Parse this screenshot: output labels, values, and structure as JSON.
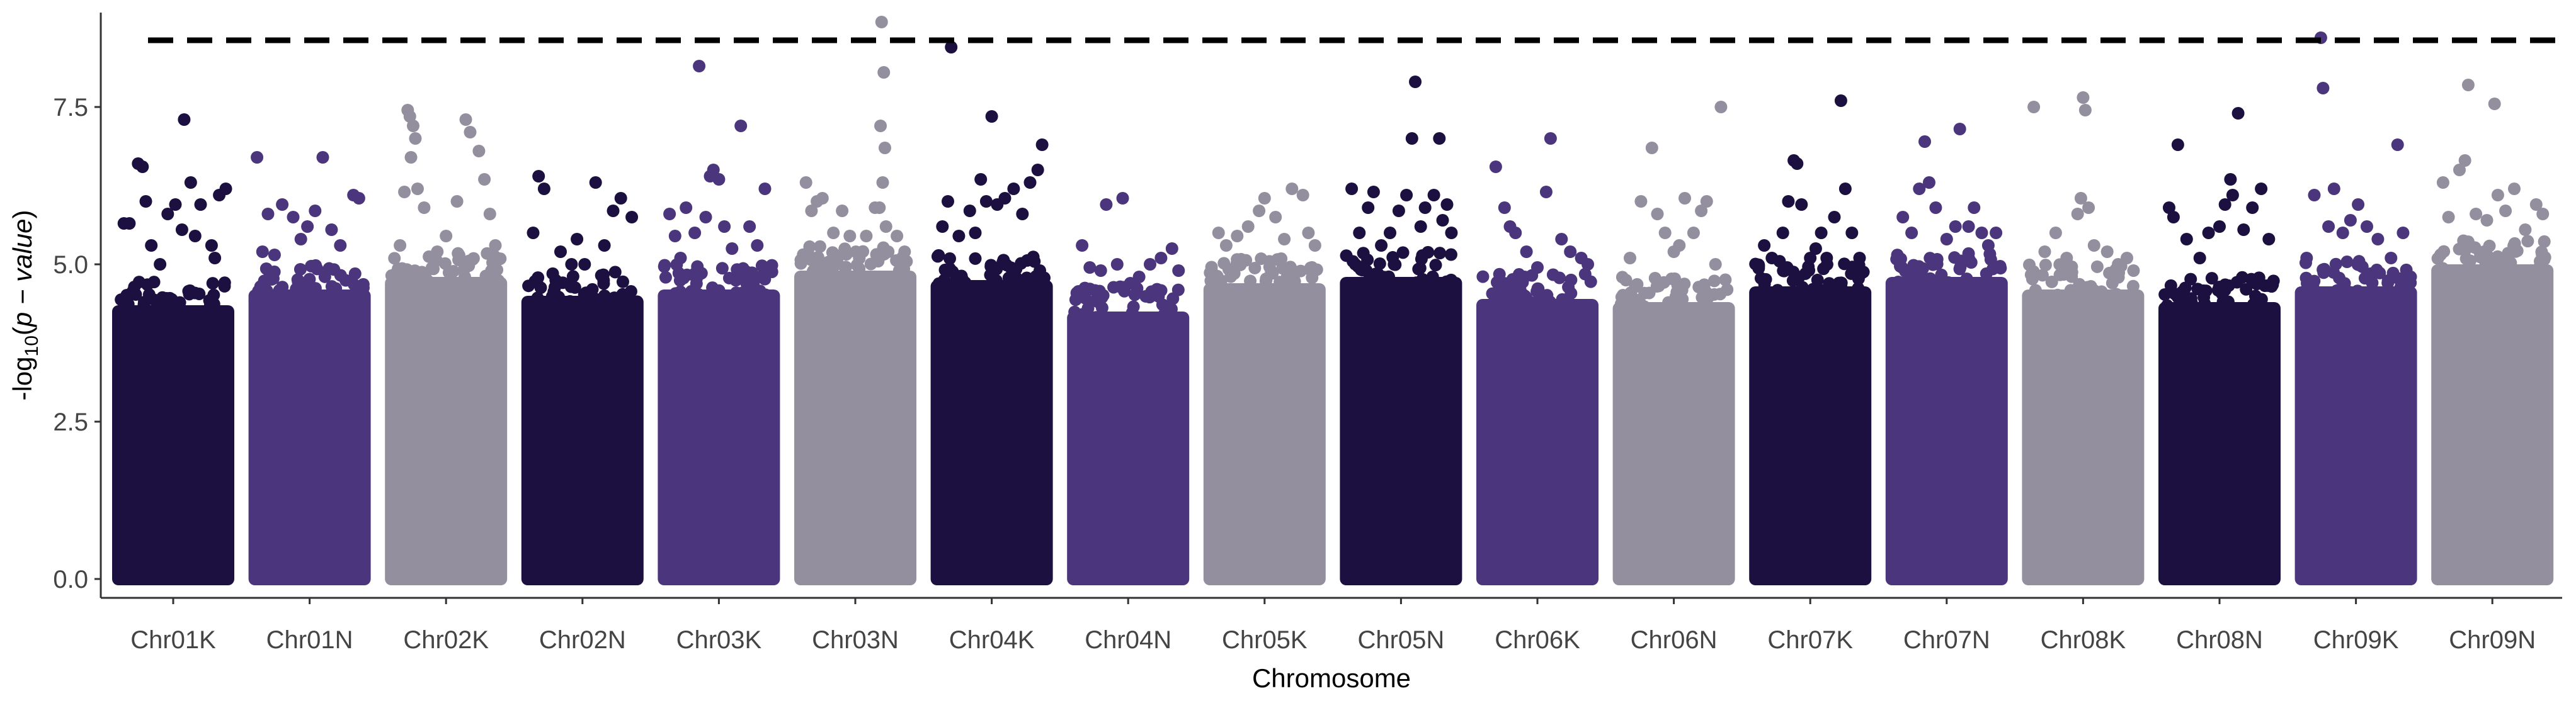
{
  "chart_data": {
    "type": "scatter",
    "subtype": "manhattan",
    "xlabel": "Chromosome",
    "ylabel": "-log10(p - value)",
    "ylabel_parts": {
      "prefix": "-log",
      "sub": "10",
      "open": "(",
      "italic": "p − value",
      "close": ")"
    },
    "ylim": [
      -0.3,
      9.0
    ],
    "yticks": [
      0.0,
      2.5,
      5.0,
      7.5
    ],
    "ytick_labels": [
      "0.0",
      "2.5",
      "5.0",
      "7.5"
    ],
    "threshold": 8.56,
    "threshold_style": "dashed",
    "grid": false,
    "legend": "none",
    "palette": [
      "#1b1040",
      "#4b357c",
      "#938f9f"
    ],
    "chromosomes": [
      {
        "name": "Chr01K",
        "color": "#1b1040",
        "bulk": 4.35,
        "peaks": [
          [
            0.18,
            6.6
          ],
          [
            0.22,
            6.55
          ],
          [
            0.6,
            7.3
          ],
          [
            0.45,
            5.8
          ],
          [
            0.7,
            5.45
          ],
          [
            0.3,
            5.3
          ],
          [
            0.85,
            5.3
          ],
          [
            0.92,
            6.1
          ],
          [
            0.98,
            6.2
          ],
          [
            0.52,
            5.95
          ],
          [
            0.38,
            5.0
          ],
          [
            0.1,
            5.65
          ],
          [
            0.66,
            6.3
          ],
          [
            0.75,
            5.95
          ],
          [
            0.88,
            5.1
          ],
          [
            0.05,
            5.65
          ],
          [
            0.25,
            6.0
          ],
          [
            0.58,
            5.55
          ]
        ]
      },
      {
        "name": "Chr01N",
        "color": "#4b357c",
        "bulk": 4.6,
        "peaks": [
          [
            0.02,
            6.7
          ],
          [
            0.07,
            5.2
          ],
          [
            0.12,
            5.8
          ],
          [
            0.25,
            5.95
          ],
          [
            0.35,
            5.75
          ],
          [
            0.42,
            5.4
          ],
          [
            0.55,
            5.85
          ],
          [
            0.62,
            6.7
          ],
          [
            0.7,
            5.55
          ],
          [
            0.78,
            5.3
          ],
          [
            0.9,
            6.1
          ],
          [
            0.95,
            6.05
          ],
          [
            0.48,
            5.6
          ],
          [
            0.18,
            5.15
          ]
        ]
      },
      {
        "name": "Chr02K",
        "color": "#938f9f",
        "bulk": 4.8,
        "peaks": [
          [
            0.15,
            7.45
          ],
          [
            0.17,
            7.35
          ],
          [
            0.2,
            7.2
          ],
          [
            0.22,
            7.0
          ],
          [
            0.18,
            6.7
          ],
          [
            0.24,
            6.2
          ],
          [
            0.12,
            6.15
          ],
          [
            0.3,
            5.9
          ],
          [
            0.42,
            5.2
          ],
          [
            0.6,
            6.0
          ],
          [
            0.68,
            7.3
          ],
          [
            0.72,
            7.1
          ],
          [
            0.8,
            6.8
          ],
          [
            0.85,
            6.35
          ],
          [
            0.9,
            5.8
          ],
          [
            0.95,
            5.3
          ],
          [
            0.5,
            5.45
          ],
          [
            0.08,
            5.3
          ]
        ]
      },
      {
        "name": "Chr02N",
        "color": "#1b1040",
        "bulk": 4.5,
        "peaks": [
          [
            0.1,
            6.4
          ],
          [
            0.15,
            6.2
          ],
          [
            0.3,
            5.2
          ],
          [
            0.45,
            5.4
          ],
          [
            0.62,
            6.3
          ],
          [
            0.7,
            5.3
          ],
          [
            0.85,
            6.05
          ],
          [
            0.95,
            5.75
          ],
          [
            0.05,
            5.5
          ],
          [
            0.52,
            5.0
          ],
          [
            0.78,
            5.85
          ],
          [
            0.4,
            5.0
          ]
        ]
      },
      {
        "name": "Chr03K",
        "color": "#4b357c",
        "bulk": 4.6,
        "peaks": [
          [
            0.05,
            5.8
          ],
          [
            0.1,
            5.45
          ],
          [
            0.2,
            5.9
          ],
          [
            0.32,
            8.15
          ],
          [
            0.38,
            5.75
          ],
          [
            0.42,
            6.4
          ],
          [
            0.45,
            6.5
          ],
          [
            0.5,
            6.35
          ],
          [
            0.55,
            5.6
          ],
          [
            0.62,
            5.25
          ],
          [
            0.7,
            7.2
          ],
          [
            0.78,
            5.6
          ],
          [
            0.85,
            5.3
          ],
          [
            0.92,
            6.2
          ],
          [
            0.28,
            5.5
          ],
          [
            0.15,
            5.1
          ]
        ]
      },
      {
        "name": "Chr03N",
        "color": "#938f9f",
        "bulk": 4.9,
        "peaks": [
          [
            0.05,
            6.3
          ],
          [
            0.1,
            5.85
          ],
          [
            0.15,
            6.0
          ],
          [
            0.2,
            6.05
          ],
          [
            0.3,
            5.5
          ],
          [
            0.38,
            5.85
          ],
          [
            0.45,
            5.45
          ],
          [
            0.55,
            4.7
          ],
          [
            0.6,
            5.45
          ],
          [
            0.68,
            5.9
          ],
          [
            0.74,
            8.85
          ],
          [
            0.76,
            8.05
          ],
          [
            0.73,
            7.2
          ],
          [
            0.77,
            6.85
          ],
          [
            0.75,
            6.3
          ],
          [
            0.72,
            5.9
          ],
          [
            0.78,
            5.6
          ],
          [
            0.8,
            5.2
          ],
          [
            0.88,
            5.45
          ],
          [
            0.95,
            5.2
          ]
        ]
      },
      {
        "name": "Chr04K",
        "color": "#1b1040",
        "bulk": 4.75,
        "peaks": [
          [
            0.05,
            5.6
          ],
          [
            0.1,
            6.0
          ],
          [
            0.13,
            8.45
          ],
          [
            0.2,
            5.45
          ],
          [
            0.3,
            5.85
          ],
          [
            0.4,
            6.35
          ],
          [
            0.45,
            6.0
          ],
          [
            0.5,
            7.35
          ],
          [
            0.55,
            5.95
          ],
          [
            0.62,
            6.05
          ],
          [
            0.7,
            6.2
          ],
          [
            0.78,
            5.8
          ],
          [
            0.85,
            6.3
          ],
          [
            0.92,
            6.5
          ],
          [
            0.96,
            6.9
          ],
          [
            0.35,
            5.5
          ]
        ]
      },
      {
        "name": "Chr04N",
        "color": "#4b357c",
        "bulk": 4.25,
        "peaks": [
          [
            0.08,
            5.3
          ],
          [
            0.15,
            4.95
          ],
          [
            0.25,
            4.9
          ],
          [
            0.3,
            5.95
          ],
          [
            0.4,
            5.0
          ],
          [
            0.45,
            6.05
          ],
          [
            0.52,
            4.7
          ],
          [
            0.6,
            4.8
          ],
          [
            0.7,
            5.0
          ],
          [
            0.8,
            5.1
          ],
          [
            0.9,
            5.25
          ],
          [
            0.96,
            4.9
          ]
        ]
      },
      {
        "name": "Chr05K",
        "color": "#938f9f",
        "bulk": 4.7,
        "peaks": [
          [
            0.08,
            5.5
          ],
          [
            0.15,
            5.3
          ],
          [
            0.25,
            5.45
          ],
          [
            0.35,
            5.6
          ],
          [
            0.45,
            5.85
          ],
          [
            0.5,
            6.05
          ],
          [
            0.6,
            5.75
          ],
          [
            0.68,
            5.4
          ],
          [
            0.75,
            6.2
          ],
          [
            0.85,
            6.1
          ],
          [
            0.9,
            5.5
          ],
          [
            0.96,
            5.3
          ]
        ]
      },
      {
        "name": "Chr05N",
        "color": "#1b1040",
        "bulk": 4.8,
        "peaks": [
          [
            0.05,
            6.2
          ],
          [
            0.12,
            5.5
          ],
          [
            0.2,
            5.9
          ],
          [
            0.25,
            6.15
          ],
          [
            0.32,
            5.3
          ],
          [
            0.4,
            5.5
          ],
          [
            0.48,
            5.85
          ],
          [
            0.55,
            6.1
          ],
          [
            0.6,
            7.0
          ],
          [
            0.63,
            7.9
          ],
          [
            0.68,
            5.6
          ],
          [
            0.72,
            5.9
          ],
          [
            0.8,
            6.1
          ],
          [
            0.85,
            7.0
          ],
          [
            0.88,
            5.7
          ],
          [
            0.92,
            5.95
          ],
          [
            0.96,
            5.5
          ]
        ]
      },
      {
        "name": "Chr06K",
        "color": "#4b357c",
        "bulk": 4.45,
        "peaks": [
          [
            0.12,
            6.55
          ],
          [
            0.2,
            5.9
          ],
          [
            0.3,
            5.5
          ],
          [
            0.4,
            5.2
          ],
          [
            0.5,
            4.95
          ],
          [
            0.58,
            6.15
          ],
          [
            0.62,
            7.0
          ],
          [
            0.72,
            5.4
          ],
          [
            0.8,
            5.2
          ],
          [
            0.9,
            5.1
          ],
          [
            0.96,
            5.0
          ],
          [
            0.25,
            5.6
          ]
        ]
      },
      {
        "name": "Chr06N",
        "color": "#938f9f",
        "bulk": 4.4,
        "peaks": [
          [
            0.1,
            5.1
          ],
          [
            0.2,
            6.0
          ],
          [
            0.3,
            6.85
          ],
          [
            0.35,
            5.8
          ],
          [
            0.42,
            5.5
          ],
          [
            0.5,
            5.2
          ],
          [
            0.6,
            6.05
          ],
          [
            0.68,
            5.5
          ],
          [
            0.75,
            5.85
          ],
          [
            0.8,
            6.0
          ],
          [
            0.88,
            5.0
          ],
          [
            0.93,
            7.5
          ],
          [
            0.55,
            5.3
          ]
        ]
      },
      {
        "name": "Chr07K",
        "color": "#1b1040",
        "bulk": 4.65,
        "peaks": [
          [
            0.08,
            5.3
          ],
          [
            0.15,
            5.1
          ],
          [
            0.25,
            5.5
          ],
          [
            0.3,
            6.0
          ],
          [
            0.35,
            6.65
          ],
          [
            0.38,
            6.6
          ],
          [
            0.42,
            5.95
          ],
          [
            0.5,
            5.1
          ],
          [
            0.55,
            5.25
          ],
          [
            0.6,
            5.5
          ],
          [
            0.65,
            5.1
          ],
          [
            0.72,
            5.75
          ],
          [
            0.78,
            7.6
          ],
          [
            0.82,
            6.2
          ],
          [
            0.88,
            5.5
          ],
          [
            0.95,
            5.1
          ]
        ]
      },
      {
        "name": "Chr07N",
        "color": "#4b357c",
        "bulk": 4.8,
        "peaks": [
          [
            0.1,
            5.75
          ],
          [
            0.18,
            5.5
          ],
          [
            0.25,
            6.2
          ],
          [
            0.3,
            6.95
          ],
          [
            0.34,
            6.3
          ],
          [
            0.4,
            5.9
          ],
          [
            0.5,
            5.4
          ],
          [
            0.58,
            5.6
          ],
          [
            0.62,
            7.15
          ],
          [
            0.7,
            5.6
          ],
          [
            0.75,
            5.9
          ],
          [
            0.82,
            5.5
          ],
          [
            0.88,
            5.3
          ],
          [
            0.95,
            5.5
          ]
        ]
      },
      {
        "name": "Chr08K",
        "color": "#938f9f",
        "bulk": 4.6,
        "peaks": [
          [
            0.05,
            7.5
          ],
          [
            0.15,
            5.2
          ],
          [
            0.25,
            5.5
          ],
          [
            0.35,
            5.1
          ],
          [
            0.45,
            5.8
          ],
          [
            0.48,
            6.05
          ],
          [
            0.5,
            7.65
          ],
          [
            0.52,
            7.45
          ],
          [
            0.55,
            5.9
          ],
          [
            0.6,
            5.3
          ],
          [
            0.72,
            5.2
          ],
          [
            0.82,
            5.0
          ],
          [
            0.9,
            5.1
          ],
          [
            0.96,
            4.9
          ]
        ]
      },
      {
        "name": "Chr08N",
        "color": "#1b1040",
        "bulk": 4.4,
        "peaks": [
          [
            0.04,
            5.9
          ],
          [
            0.08,
            5.75
          ],
          [
            0.12,
            6.9
          ],
          [
            0.2,
            5.4
          ],
          [
            0.32,
            5.1
          ],
          [
            0.4,
            5.5
          ],
          [
            0.5,
            5.6
          ],
          [
            0.55,
            5.95
          ],
          [
            0.6,
            6.35
          ],
          [
            0.62,
            6.1
          ],
          [
            0.67,
            7.4
          ],
          [
            0.72,
            5.55
          ],
          [
            0.8,
            5.9
          ],
          [
            0.88,
            6.2
          ],
          [
            0.95,
            5.4
          ]
        ]
      },
      {
        "name": "Chr09K",
        "color": "#4b357c",
        "bulk": 4.65,
        "peaks": [
          [
            0.05,
            5.1
          ],
          [
            0.12,
            6.1
          ],
          [
            0.18,
            8.6
          ],
          [
            0.2,
            7.8
          ],
          [
            0.25,
            5.6
          ],
          [
            0.3,
            6.2
          ],
          [
            0.38,
            5.5
          ],
          [
            0.45,
            5.7
          ],
          [
            0.52,
            5.95
          ],
          [
            0.6,
            5.6
          ],
          [
            0.7,
            5.4
          ],
          [
            0.82,
            5.1
          ],
          [
            0.88,
            6.9
          ],
          [
            0.93,
            5.5
          ]
        ]
      },
      {
        "name": "Chr09N",
        "color": "#938f9f",
        "bulk": 5.0,
        "peaks": [
          [
            0.05,
            6.3
          ],
          [
            0.1,
            5.75
          ],
          [
            0.2,
            6.5
          ],
          [
            0.25,
            6.65
          ],
          [
            0.28,
            7.85
          ],
          [
            0.35,
            5.8
          ],
          [
            0.45,
            5.7
          ],
          [
            0.52,
            7.55
          ],
          [
            0.55,
            6.1
          ],
          [
            0.62,
            5.85
          ],
          [
            0.7,
            6.2
          ],
          [
            0.8,
            5.55
          ],
          [
            0.9,
            5.95
          ],
          [
            0.96,
            5.8
          ]
        ]
      }
    ]
  }
}
